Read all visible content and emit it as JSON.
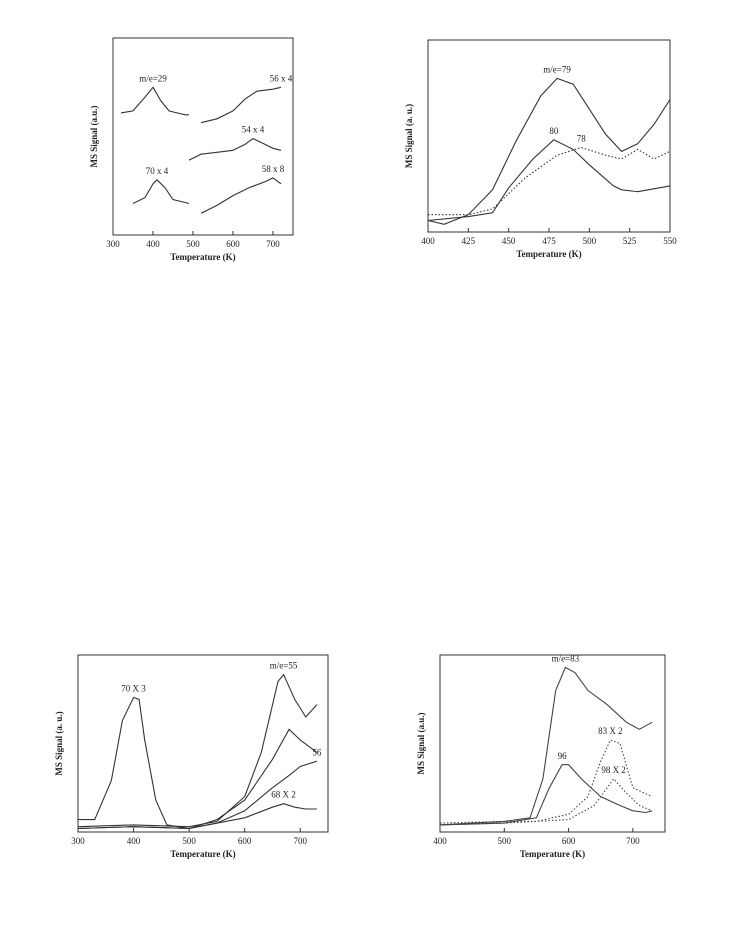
{
  "chart_data": [
    {
      "type": "line",
      "ylabel": "MS Signal (a.u.)",
      "xlabel": "Temperature (K)",
      "xlim": [
        300,
        750
      ],
      "xticks": [
        300,
        400,
        500,
        600,
        700
      ],
      "ylim": [
        0,
        100
      ],
      "series": [
        {
          "name": "m/e=29",
          "color": "#333333",
          "style": "solid",
          "x": [
            320,
            350,
            380,
            400,
            420,
            440,
            460,
            480,
            490
          ],
          "values": [
            62,
            63,
            70,
            75,
            68,
            63,
            62,
            61,
            61
          ]
        },
        {
          "name": "56 x 4",
          "color": "#333333",
          "style": "solid",
          "x": [
            520,
            560,
            600,
            630,
            660,
            700,
            720
          ],
          "values": [
            57,
            59,
            63,
            69,
            73,
            74,
            75
          ]
        },
        {
          "name": "54 x 4",
          "color": "#333333",
          "style": "solid",
          "x": [
            490,
            520,
            560,
            600,
            630,
            650,
            670,
            700,
            720
          ],
          "values": [
            38,
            41,
            42,
            43,
            46,
            49,
            47,
            44,
            43
          ]
        },
        {
          "name": "70 x 4",
          "color": "#333333",
          "style": "solid",
          "x": [
            350,
            380,
            400,
            410,
            430,
            450,
            470,
            490
          ],
          "values": [
            16,
            19,
            26,
            28,
            24,
            18,
            17,
            16
          ]
        },
        {
          "name": "58 x 8",
          "color": "#333333",
          "style": "solid",
          "x": [
            520,
            560,
            600,
            640,
            680,
            700,
            720
          ],
          "values": [
            11,
            15,
            20,
            24,
            27,
            29,
            26
          ]
        }
      ]
    },
    {
      "type": "line",
      "ylabel": "MS Signal (a. u.)",
      "xlabel": "Temperature (K)",
      "xlim": [
        400,
        550
      ],
      "xticks": [
        400,
        425,
        450,
        475,
        500,
        525,
        550
      ],
      "ylim": [
        0,
        100
      ],
      "series": [
        {
          "name": "m/e=79",
          "color": "#333333",
          "style": "solid",
          "x": [
            400,
            410,
            425,
            440,
            455,
            470,
            480,
            490,
            500,
            510,
            520,
            530,
            540,
            550
          ],
          "values": [
            6,
            4,
            9,
            22,
            48,
            71,
            80,
            77,
            64,
            51,
            42,
            46,
            56,
            69
          ]
        },
        {
          "name": "80",
          "color": "#333333",
          "style": "solid",
          "x": [
            400,
            425,
            440,
            450,
            465,
            478,
            490,
            500,
            515,
            520,
            530,
            550
          ],
          "values": [
            6,
            8,
            10,
            23,
            38,
            48,
            43,
            35,
            24,
            22,
            21,
            24
          ]
        },
        {
          "name": "78",
          "color": "#333333",
          "style": "dotted",
          "x": [
            400,
            425,
            440,
            460,
            480,
            495,
            510,
            520,
            530,
            540,
            550
          ],
          "values": [
            9,
            9,
            12,
            28,
            40,
            44,
            40,
            38,
            43,
            38,
            42
          ]
        }
      ]
    },
    {
      "type": "line",
      "ylabel": "MS Signal (a. u.)",
      "xlabel": "Temperature (K)",
      "xlim": [
        300,
        750
      ],
      "xticks": [
        300,
        400,
        500,
        600,
        700
      ],
      "ylim": [
        0,
        100
      ],
      "series": [
        {
          "name": "70 X 3",
          "color": "#333333",
          "style": "solid",
          "x": [
            300,
            330,
            360,
            380,
            400,
            410,
            420,
            440,
            460,
            500,
            550,
            600,
            650,
            680,
            700,
            730
          ],
          "values": [
            7,
            7,
            29,
            63,
            76,
            75,
            52,
            18,
            4,
            2,
            7,
            18,
            41,
            58,
            52,
            45
          ]
        },
        {
          "name": "m/e=55",
          "color": "#333333",
          "style": "solid",
          "x": [
            300,
            400,
            500,
            550,
            600,
            630,
            660,
            670,
            690,
            710,
            730
          ],
          "values": [
            3,
            4,
            3,
            6,
            20,
            45,
            85,
            89,
            75,
            65,
            72
          ]
        },
        {
          "name": "56",
          "color": "#333333",
          "style": "solid",
          "x": [
            300,
            400,
            500,
            550,
            600,
            650,
            680,
            700,
            730
          ],
          "values": [
            2,
            3,
            2,
            5,
            12,
            25,
            32,
            37,
            40
          ]
        },
        {
          "name": "68 X 2",
          "color": "#333333",
          "style": "solid",
          "x": [
            300,
            400,
            500,
            600,
            650,
            670,
            690,
            710,
            730
          ],
          "values": [
            2,
            3,
            2,
            8,
            14,
            16,
            14,
            13,
            13
          ]
        }
      ]
    },
    {
      "type": "line",
      "ylabel": "MS Signal (a.u.)",
      "xlabel": "Temperature (K)",
      "xlim": [
        400,
        750
      ],
      "xticks": [
        400,
        500,
        600,
        700
      ],
      "ylim": [
        0,
        100
      ],
      "series": [
        {
          "name": "m/e=83",
          "color": "#444444",
          "style": "solid",
          "x": [
            400,
            450,
            500,
            540,
            560,
            580,
            595,
            610,
            630,
            660,
            690,
            710,
            730
          ],
          "values": [
            4,
            5,
            6,
            8,
            30,
            80,
            93,
            90,
            80,
            72,
            62,
            58,
            62
          ]
        },
        {
          "name": "96",
          "color": "#444444",
          "style": "solid",
          "x": [
            400,
            500,
            550,
            570,
            590,
            600,
            620,
            650,
            680,
            700,
            720,
            730
          ],
          "values": [
            4,
            5,
            8,
            25,
            38,
            38,
            30,
            20,
            15,
            12,
            11,
            12
          ]
        },
        {
          "name": "83 X 2",
          "color": "#444444",
          "style": "dotted",
          "x": [
            400,
            500,
            550,
            600,
            630,
            650,
            665,
            680,
            700,
            730
          ],
          "values": [
            5,
            6,
            6,
            10,
            20,
            40,
            52,
            50,
            25,
            20
          ]
        },
        {
          "name": "98 X 2",
          "color": "#444444",
          "style": "dotted",
          "x": [
            400,
            500,
            600,
            640,
            670,
            690,
            710,
            730
          ],
          "values": [
            4,
            5,
            7,
            15,
            30,
            22,
            15,
            12
          ]
        }
      ]
    }
  ]
}
